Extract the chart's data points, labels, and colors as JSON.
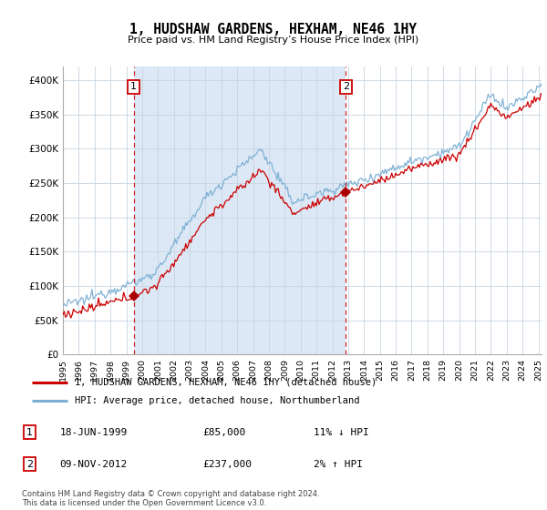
{
  "title": "1, HUDSHAW GARDENS, HEXHAM, NE46 1HY",
  "subtitle": "Price paid vs. HM Land Registry’s House Price Index (HPI)",
  "legend_line1": "1, HUDSHAW GARDENS, HEXHAM, NE46 1HY (detached house)",
  "legend_line2": "HPI: Average price, detached house, Northumberland",
  "annotation1_date": "18-JUN-1999",
  "annotation1_price": 85000,
  "annotation1_hpi": "11% ↓ HPI",
  "annotation2_date": "09-NOV-2012",
  "annotation2_price": 237000,
  "annotation2_hpi": "2% ↑ HPI",
  "footer": "Contains HM Land Registry data © Crown copyright and database right 2024.\nThis data is licensed under the Open Government Licence v3.0.",
  "hpi_color": "#7bafd4",
  "price_color": "#cc0000",
  "marker_color": "#aa0000",
  "background_color": "#dce8f5",
  "outside_background": "#f0f4f8",
  "annotation_box_color": "#cc0000",
  "shade_color": "#dce8f5",
  "grid_color": "#c8d4e0",
  "ylim": [
    0,
    420000
  ],
  "yticks": [
    0,
    50000,
    100000,
    150000,
    200000,
    250000,
    300000,
    350000,
    400000
  ],
  "sale1_year": 1999.46,
  "sale2_year": 2012.86,
  "xmin": 1995.0,
  "xmax": 2025.2
}
